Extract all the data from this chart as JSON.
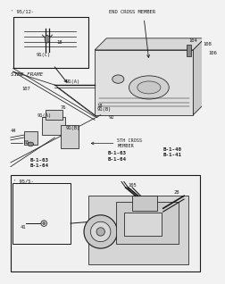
{
  "bg": "#f2f2f2",
  "lc": "#1a1a1a",
  "lw": 0.55,
  "title_top": "' 95/12-",
  "title_bot": "' 95/5-",
  "end_cross_member": "END CROSS MEMBER",
  "side_frame": "SIDE FRAME",
  "fifth_cross": "5TH CROSS\nMEMBER",
  "b1_40": "B-1-40",
  "b1_41": "B-1-41",
  "b1_63a": "B-1-63",
  "b1_64a": "B-1-64",
  "b1_63b": "B-1-63",
  "b1_64b": "B-1-64",
  "n18a": "18",
  "n18b": "18",
  "n91a_top": "91(A)",
  "n91b_top": "91(B)",
  "n91a_bot": "91(A)",
  "n91b_bot": "91(B)",
  "n91c": "91(C)",
  "n92": "92",
  "n76": "76",
  "n44": "44",
  "n65": "65",
  "n107": "107",
  "n104": "104",
  "n108": "108",
  "n106": "106",
  "n105": "105",
  "n28": "28",
  "n41": "41"
}
